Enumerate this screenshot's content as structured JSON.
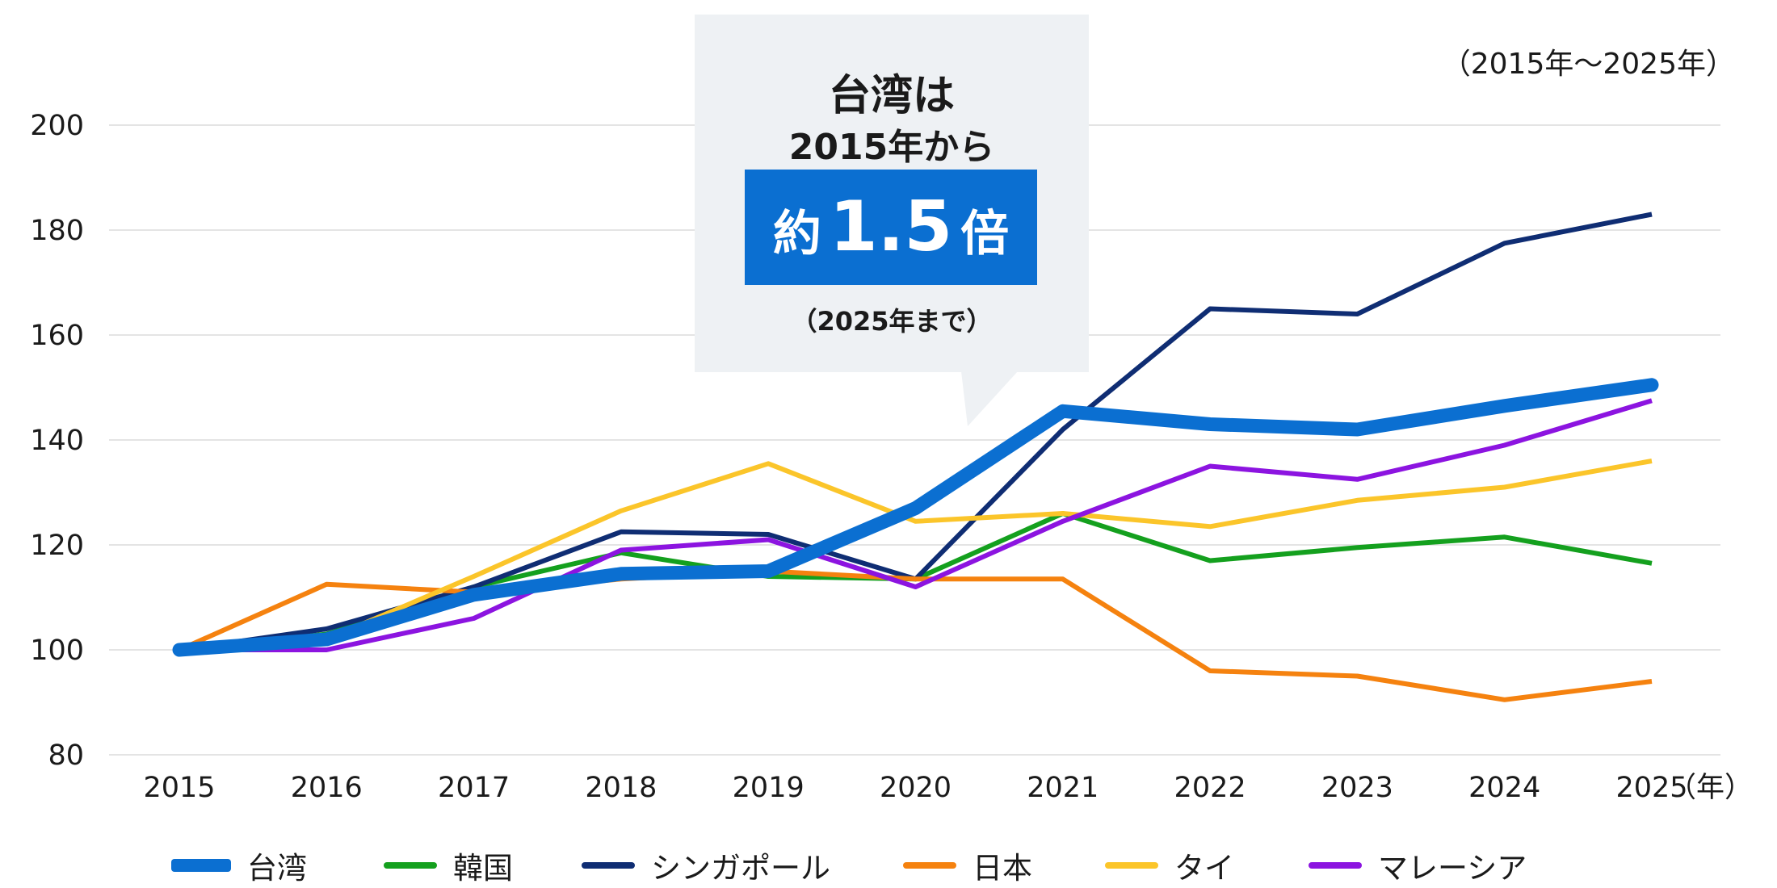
{
  "chart_data": {
    "type": "line",
    "title": "",
    "xlabel": "（年）",
    "ylabel": "",
    "range_note": "（2015年～2025年）",
    "categories": [
      "2015",
      "2016",
      "2017",
      "2018",
      "2019",
      "2020",
      "2021",
      "2022",
      "2023",
      "2024",
      "2025"
    ],
    "ylim": [
      80,
      200
    ],
    "yticks": [
      80,
      100,
      120,
      140,
      160,
      180,
      200
    ],
    "grid": true,
    "legend_position": "bottom",
    "series": [
      {
        "name": "台湾",
        "color": "#0b6fd1",
        "emphasis": true,
        "values": [
          100,
          102,
          110.5,
          114.5,
          115,
          127,
          145.5,
          143,
          142,
          146.5,
          150.5
        ]
      },
      {
        "name": "韓国",
        "color": "#14a01e",
        "values": [
          100,
          103,
          112,
          118.5,
          114,
          113.5,
          126,
          117,
          119.5,
          121.5,
          116.5
        ]
      },
      {
        "name": "シンガポール",
        "color": "#0f2d73",
        "values": [
          100,
          104,
          112,
          122.5,
          122,
          113.5,
          142,
          165,
          164,
          177.5,
          183
        ]
      },
      {
        "name": "日本",
        "color": "#f5820f",
        "values": [
          100,
          112.5,
          111,
          113.5,
          115,
          113.5,
          113.5,
          96,
          95,
          90.5,
          94
        ]
      },
      {
        "name": "タイ",
        "color": "#fbc52a",
        "values": [
          100,
          102,
          114,
          126.5,
          135.5,
          124.5,
          126,
          123.5,
          128.5,
          131,
          136
        ]
      },
      {
        "name": "マレーシア",
        "color": "#8c14e0",
        "values": [
          100,
          100,
          106,
          119,
          121,
          112,
          124.5,
          135,
          132.5,
          139,
          147.5
        ]
      }
    ],
    "annotation": {
      "line1": "台湾は",
      "line2": "2015年から",
      "highlight_prefix": "約",
      "highlight_value": "1.5",
      "highlight_suffix": "倍",
      "note": "（2025年まで）"
    }
  }
}
